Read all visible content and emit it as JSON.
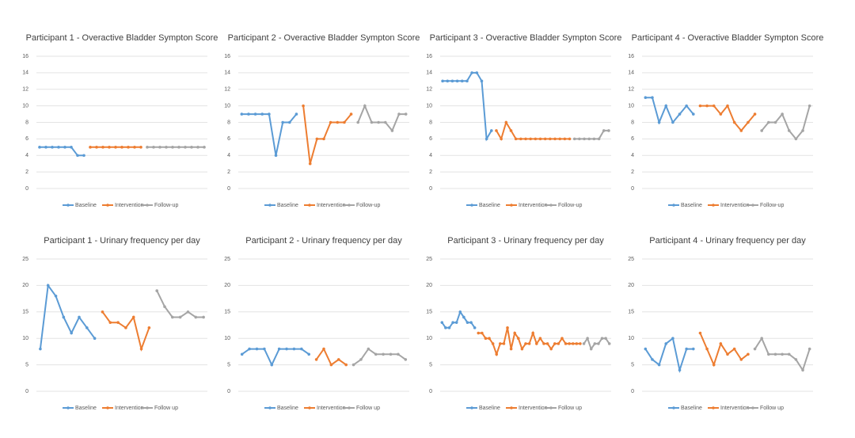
{
  "chart_data": [
    {
      "type": "line",
      "title": "Participant 1 - Overactive Bladder Sympton Score",
      "ylim": [
        0,
        16
      ],
      "yticks": [
        0,
        2,
        4,
        6,
        8,
        10,
        12,
        14,
        16
      ],
      "grid": true,
      "series": [
        {
          "name": "Baseline",
          "color": "#5b9bd5",
          "values": [
            5,
            5,
            5,
            5,
            5,
            5,
            4,
            4
          ]
        },
        {
          "name": "Intervention",
          "color": "#ed7d31",
          "values": [
            5,
            5,
            5,
            5,
            5,
            5,
            5,
            5,
            5
          ]
        },
        {
          "name": "Follow-up",
          "color": "#a5a5a5",
          "values": [
            5,
            5,
            5,
            5,
            5,
            5,
            5,
            5,
            5,
            5
          ]
        }
      ]
    },
    {
      "type": "line",
      "title": "Participant 2 - Overactive Bladder Sympton Score",
      "ylim": [
        0,
        16
      ],
      "yticks": [
        0,
        2,
        4,
        6,
        8,
        10,
        12,
        14,
        16
      ],
      "grid": true,
      "series": [
        {
          "name": "Baseline",
          "color": "#5b9bd5",
          "values": [
            9,
            9,
            9,
            9,
            9,
            4,
            8,
            8,
            9
          ]
        },
        {
          "name": "Intervention",
          "color": "#ed7d31",
          "values": [
            10,
            3,
            6,
            6,
            8,
            8,
            8,
            9
          ]
        },
        {
          "name": "Follow-up",
          "color": "#a5a5a5",
          "values": [
            8,
            10,
            8,
            8,
            8,
            7,
            9,
            9
          ]
        }
      ]
    },
    {
      "type": "line",
      "title": "Participant 3 - Overactive Bladder Sympton Score",
      "ylim": [
        0,
        16
      ],
      "yticks": [
        0,
        2,
        4,
        6,
        8,
        10,
        12,
        14,
        16
      ],
      "grid": true,
      "series": [
        {
          "name": "Baseline",
          "color": "#5b9bd5",
          "values": [
            13,
            13,
            13,
            13,
            13,
            13,
            14,
            14,
            13,
            6,
            7
          ]
        },
        {
          "name": "Intervention",
          "color": "#ed7d31",
          "values": [
            7,
            6,
            8,
            7,
            6,
            6,
            6,
            6,
            6,
            6,
            6,
            6,
            6,
            6,
            6,
            6
          ]
        },
        {
          "name": "Follow-up",
          "color": "#a5a5a5",
          "values": [
            6,
            6,
            6,
            6,
            6,
            6,
            7,
            7
          ]
        }
      ]
    },
    {
      "type": "line",
      "title": "Participant 4 - Overactive Bladder Sympton Score",
      "ylim": [
        0,
        16
      ],
      "yticks": [
        0,
        2,
        4,
        6,
        8,
        10,
        12,
        14,
        16
      ],
      "grid": true,
      "series": [
        {
          "name": "Baseline",
          "color": "#5b9bd5",
          "values": [
            11,
            11,
            8,
            10,
            8,
            9,
            10,
            9
          ]
        },
        {
          "name": "Intervention",
          "color": "#ed7d31",
          "values": [
            10,
            10,
            10,
            9,
            10,
            8,
            7,
            8,
            9
          ]
        },
        {
          "name": "Follow-up",
          "color": "#a5a5a5",
          "values": [
            7,
            8,
            8,
            9,
            7,
            6,
            7,
            10
          ]
        }
      ]
    },
    {
      "type": "line",
      "title": "Participant 1 - Urinary frequency per day",
      "ylim": [
        0,
        25
      ],
      "yticks": [
        0,
        5,
        10,
        15,
        20,
        25
      ],
      "grid": true,
      "series": [
        {
          "name": "Baseline",
          "color": "#5b9bd5",
          "values": [
            8,
            20,
            18,
            14,
            11,
            14,
            12,
            10
          ]
        },
        {
          "name": "Intervention",
          "color": "#ed7d31",
          "values": [
            15,
            13,
            13,
            12,
            14,
            8,
            12
          ]
        },
        {
          "name": "Follow up",
          "color": "#a5a5a5",
          "values": [
            19,
            16,
            14,
            14,
            15,
            14,
            14
          ]
        }
      ]
    },
    {
      "type": "line",
      "title": "Participant 2 - Urinary frequency per day",
      "ylim": [
        0,
        25
      ],
      "yticks": [
        0,
        5,
        10,
        15,
        20,
        25
      ],
      "grid": true,
      "series": [
        {
          "name": "Baseline",
          "color": "#5b9bd5",
          "values": [
            7,
            8,
            8,
            8,
            5,
            8,
            8,
            8,
            8,
            7
          ]
        },
        {
          "name": "Intervention",
          "color": "#ed7d31",
          "values": [
            6,
            8,
            5,
            6,
            5
          ]
        },
        {
          "name": "Follow up",
          "color": "#a5a5a5",
          "values": [
            5,
            6,
            8,
            7,
            7,
            7,
            7,
            6
          ]
        }
      ]
    },
    {
      "type": "line",
      "title": "Participant 3 - Urinary frequency per day",
      "ylim": [
        0,
        25
      ],
      "yticks": [
        0,
        5,
        10,
        15,
        20,
        25
      ],
      "grid": true,
      "series": [
        {
          "name": "Baseline",
          "color": "#5b9bd5",
          "values": [
            13,
            12,
            12,
            13,
            13,
            15,
            14,
            13,
            13,
            12
          ]
        },
        {
          "name": "Intervention",
          "color": "#ed7d31",
          "values": [
            11,
            11,
            10,
            10,
            9,
            7,
            9,
            9,
            12,
            8,
            11,
            10,
            8,
            9,
            9,
            11,
            9,
            10,
            9,
            9,
            8,
            9,
            9,
            10,
            9,
            9,
            9,
            9,
            9
          ]
        },
        {
          "name": "Follow up",
          "color": "#a5a5a5",
          "values": [
            9,
            10,
            8,
            9,
            9,
            10,
            10,
            9
          ]
        }
      ]
    },
    {
      "type": "line",
      "title": "Participant 4 - Urinary frequency per day",
      "ylim": [
        0,
        25
      ],
      "yticks": [
        0,
        5,
        10,
        15,
        20,
        25
      ],
      "grid": true,
      "series": [
        {
          "name": "Baseline",
          "color": "#5b9bd5",
          "values": [
            8,
            6,
            5,
            9,
            10,
            4,
            8,
            8
          ]
        },
        {
          "name": "Intervention",
          "color": "#ed7d31",
          "values": [
            11,
            8,
            5,
            9,
            7,
            8,
            6,
            7
          ]
        },
        {
          "name": "Follow up",
          "color": "#a5a5a5",
          "values": [
            8,
            10,
            7,
            7,
            7,
            7,
            6,
            4,
            8
          ]
        }
      ]
    }
  ]
}
